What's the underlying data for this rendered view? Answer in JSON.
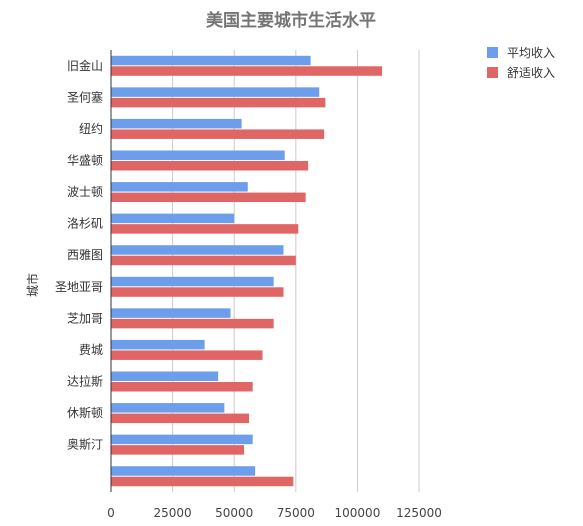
{
  "chart_data": {
    "type": "bar",
    "orientation": "horizontal",
    "title": "美国主要城市生活水平",
    "ylabel": "城市",
    "xlabel": "",
    "categories": [
      "旧金山",
      "圣何塞",
      "纽约",
      "华盛顿",
      "波士顿",
      "洛杉矶",
      "西雅图",
      "圣地亚哥",
      "芝加哥",
      "费城",
      "达拉斯",
      "休斯顿",
      "奥斯汀",
      ""
    ],
    "series": [
      {
        "name": "平均收入",
        "color": "#6d9eeb",
        "values": [
          81000,
          84500,
          53000,
          70500,
          55500,
          50000,
          70000,
          66000,
          48500,
          38000,
          43500,
          46000,
          57500,
          58500
        ]
      },
      {
        "name": "舒适收入",
        "color": "#e06666",
        "values": [
          110000,
          87000,
          86500,
          80000,
          79000,
          76000,
          75000,
          70000,
          66000,
          61500,
          57500,
          56000,
          54000,
          74000
        ]
      }
    ],
    "xlim": [
      0,
      140000
    ],
    "xticks": [
      0,
      25000,
      50000,
      75000,
      100000,
      125000
    ],
    "grid": true,
    "legend_position": "top-right"
  }
}
